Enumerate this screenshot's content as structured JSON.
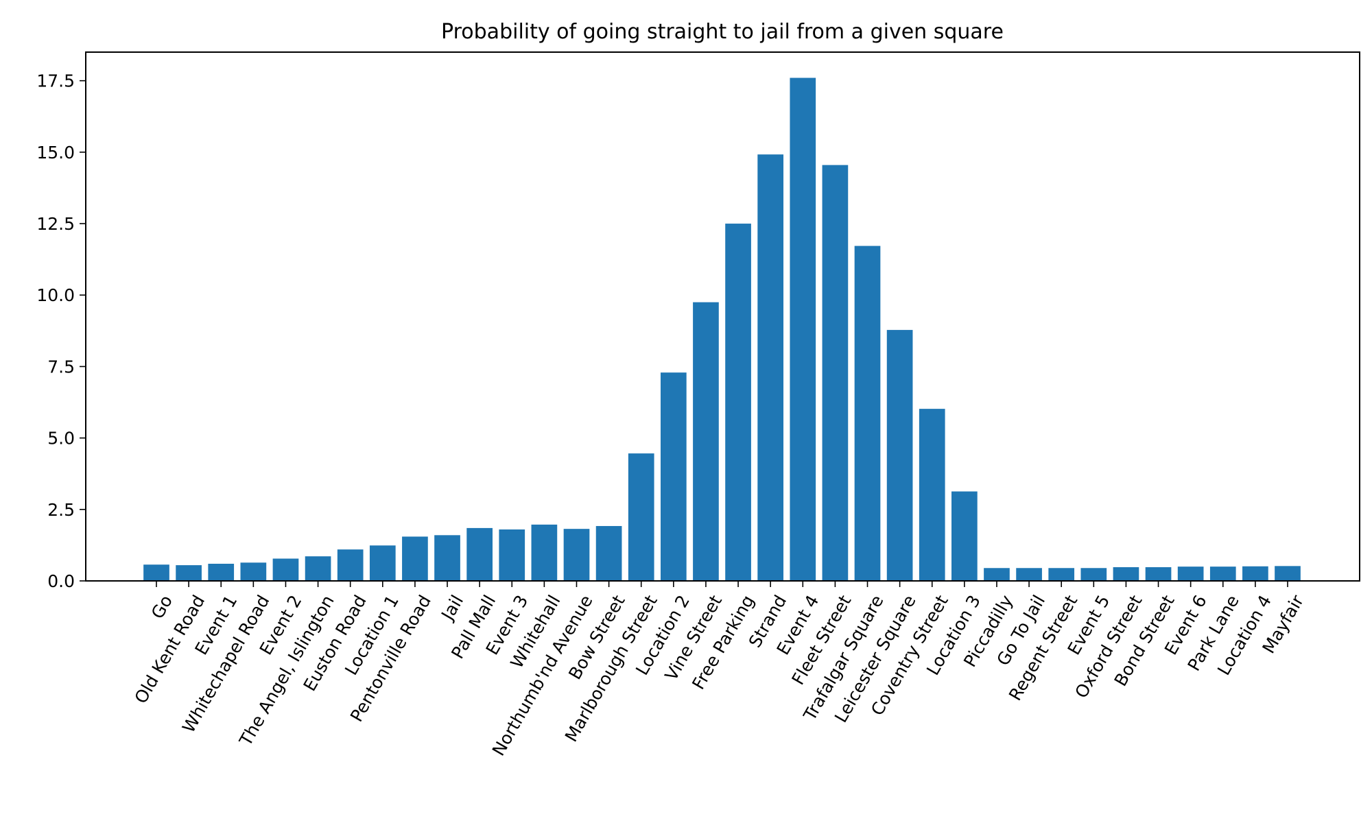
{
  "chart_data": {
    "type": "bar",
    "title": "Probability of going straight to jail from a given square",
    "xlabel": "",
    "ylabel": "",
    "ylim": [
      0,
      18.5
    ],
    "yticks": [
      "0.0",
      "2.5",
      "5.0",
      "7.5",
      "10.0",
      "12.5",
      "15.0",
      "17.5"
    ],
    "bar_color": "#1f77b4",
    "grid": false,
    "categories": [
      "Go",
      "Old Kent Road",
      "Event 1",
      "Whitechapel Road",
      "Event 2",
      "The Angel, Islington",
      "Euston Road",
      "Location 1",
      "Pentonville Road",
      "Jail",
      "Pall Mall",
      "Event 3",
      "Whitehall",
      "Northumb'nd Avenue",
      "Bow Street",
      "Marlborough Street",
      "Location 2",
      "Vine Street",
      "Free Parking",
      "Strand",
      "Event 4",
      "Fleet Street",
      "Trafalgar Square",
      "Leicester Square",
      "Coventry Street",
      "Location 3",
      "Piccadilly",
      "Go To Jail",
      "Regent Street",
      "Event 5",
      "Oxford Street",
      "Bond Street",
      "Event 6",
      "Park Lane",
      "Location 4",
      "Mayfair"
    ],
    "values": [
      0.57,
      0.55,
      0.6,
      0.64,
      0.78,
      0.86,
      1.1,
      1.24,
      1.55,
      1.6,
      1.85,
      1.8,
      1.97,
      1.82,
      1.92,
      4.46,
      7.29,
      9.75,
      12.5,
      14.92,
      17.6,
      14.55,
      11.72,
      8.78,
      6.02,
      3.13,
      0.45,
      0.45,
      0.45,
      0.45,
      0.48,
      0.48,
      0.5,
      0.5,
      0.51,
      0.52
    ]
  }
}
